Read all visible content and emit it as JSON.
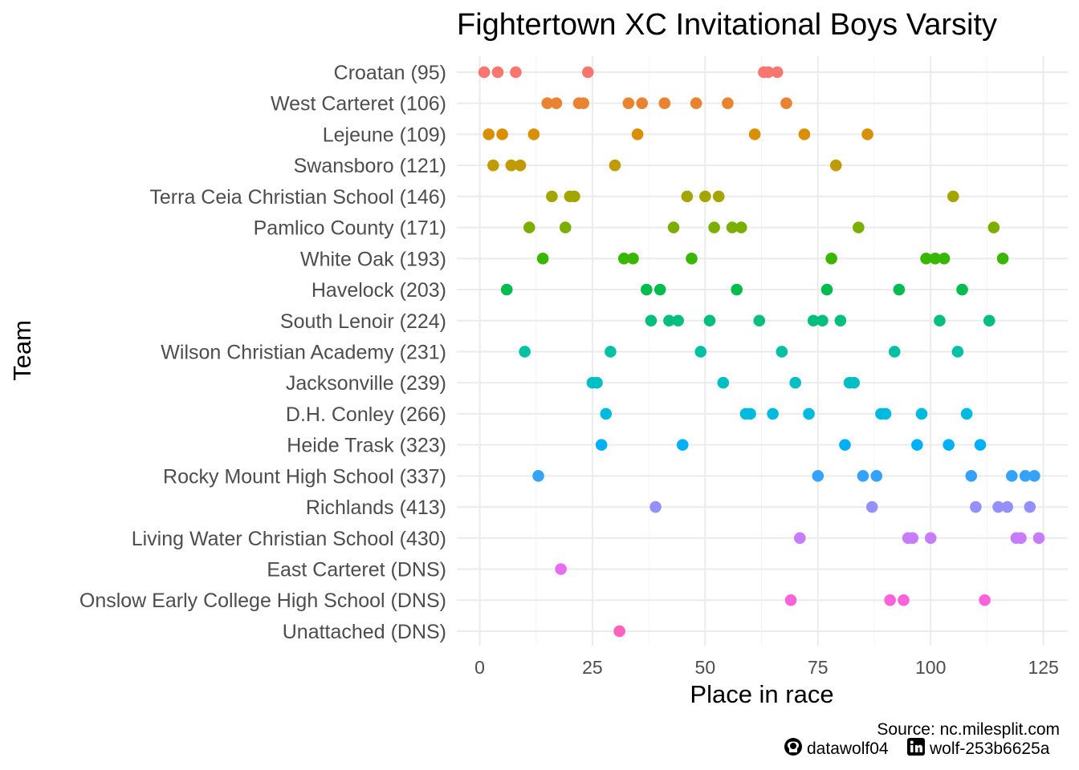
{
  "chart_data": {
    "type": "scatter",
    "title": "Fightertown XC Invitational Boys Varsity",
    "xlabel": "Place in race",
    "ylabel": "Team",
    "xlim": [
      -5,
      130
    ],
    "x_ticks": [
      0,
      25,
      50,
      75,
      100,
      125
    ],
    "grid": true,
    "legend": "none",
    "caption": {
      "source": "Source: nc.milesplit.com",
      "github": "datawolf04",
      "linkedin": "wolf-253b6625a"
    },
    "series": [
      {
        "team": "Croatan (95)",
        "color": "#F8766D",
        "places": [
          1,
          4,
          8,
          24,
          63,
          64,
          66
        ]
      },
      {
        "team": "West Carteret (106)",
        "color": "#EA8331",
        "places": [
          15,
          17,
          22,
          23,
          33,
          36,
          41,
          48,
          55,
          68
        ]
      },
      {
        "team": "Lejeune (109)",
        "color": "#D89000",
        "places": [
          2,
          5,
          12,
          35,
          61,
          72,
          86
        ]
      },
      {
        "team": "Swansboro (121)",
        "color": "#C09B00",
        "places": [
          3,
          7,
          9,
          30,
          79
        ]
      },
      {
        "team": "Terra Ceia Christian School (146)",
        "color": "#A3A500",
        "places": [
          16,
          20,
          21,
          46,
          50,
          53,
          105
        ]
      },
      {
        "team": "Pamlico County (171)",
        "color": "#7CAE00",
        "places": [
          11,
          19,
          43,
          52,
          56,
          58,
          84,
          114
        ]
      },
      {
        "team": "White Oak (193)",
        "color": "#39B600",
        "places": [
          14,
          32,
          34,
          47,
          78,
          99,
          101,
          103,
          116
        ]
      },
      {
        "team": "Havelock (203)",
        "color": "#00BB4E",
        "places": [
          6,
          37,
          40,
          57,
          77,
          93,
          107
        ]
      },
      {
        "team": "South Lenoir (224)",
        "color": "#00BF7D",
        "places": [
          38,
          42,
          44,
          51,
          62,
          74,
          76,
          80,
          102,
          113
        ]
      },
      {
        "team": "Wilson Christian Academy (231)",
        "color": "#00C1A3",
        "places": [
          10,
          29,
          49,
          67,
          92,
          106
        ]
      },
      {
        "team": "Jacksonville (239)",
        "color": "#00BFC4",
        "places": [
          25,
          26,
          54,
          70,
          82,
          83
        ]
      },
      {
        "team": "D.H. Conley (266)",
        "color": "#00BAE0",
        "places": [
          28,
          59,
          60,
          65,
          73,
          89,
          90,
          98,
          108
        ]
      },
      {
        "team": "Heide Trask (323)",
        "color": "#00B0F6",
        "places": [
          27,
          45,
          81,
          97,
          104,
          111
        ]
      },
      {
        "team": "Rocky Mount High School (337)",
        "color": "#35A2FF",
        "places": [
          13,
          75,
          85,
          88,
          109,
          118,
          121,
          123
        ]
      },
      {
        "team": "Richlands (413)",
        "color": "#9590FF",
        "places": [
          39,
          87,
          110,
          115,
          117,
          122
        ]
      },
      {
        "team": "Living Water Christian School (430)",
        "color": "#C77CFF",
        "places": [
          71,
          95,
          96,
          100,
          119,
          120,
          124
        ]
      },
      {
        "team": "East Carteret (DNS)",
        "color": "#E76BF3",
        "places": [
          18
        ]
      },
      {
        "team": "Onslow Early College High School (DNS)",
        "color": "#FA62DB",
        "places": [
          69,
          91,
          94,
          112
        ]
      },
      {
        "team": "Unattached (DNS)",
        "color": "#FF62BC",
        "places": [
          31
        ]
      }
    ]
  }
}
